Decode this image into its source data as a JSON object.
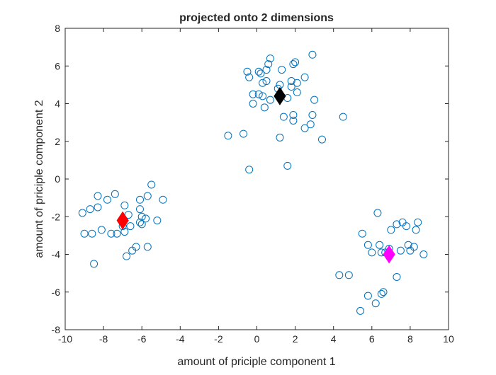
{
  "chart_data": {
    "type": "scatter",
    "title": "projected onto 2 dimensions",
    "xlabel": "amount of priciple component 1",
    "ylabel": "amount of priciple component 2",
    "xlim": [
      -10,
      10
    ],
    "ylim": [
      -8,
      8
    ],
    "xticks": [
      -10,
      -8,
      -6,
      -4,
      -2,
      0,
      2,
      4,
      6,
      8,
      10
    ],
    "yticks": [
      -8,
      -6,
      -4,
      -2,
      0,
      2,
      4,
      6,
      8
    ],
    "grid": false,
    "point_color": "#0072BD",
    "points": [
      [
        -9.1,
        -1.8
      ],
      [
        -9.0,
        -2.9
      ],
      [
        -8.7,
        -1.6
      ],
      [
        -8.6,
        -2.9
      ],
      [
        -8.5,
        -4.5
      ],
      [
        -8.3,
        -0.9
      ],
      [
        -8.3,
        -1.5
      ],
      [
        -8.1,
        -2.7
      ],
      [
        -7.8,
        -1.1
      ],
      [
        -7.6,
        -2.9
      ],
      [
        -7.4,
        -0.8
      ],
      [
        -7.3,
        -2.9
      ],
      [
        -7.0,
        -2.1
      ],
      [
        -7.0,
        -2.5
      ],
      [
        -6.9,
        -1.4
      ],
      [
        -6.9,
        -2.8
      ],
      [
        -6.8,
        -4.1
      ],
      [
        -6.7,
        -1.9
      ],
      [
        -6.6,
        -2.5
      ],
      [
        -6.5,
        -3.8
      ],
      [
        -6.3,
        -3.6
      ],
      [
        -6.1,
        -1.1
      ],
      [
        -6.1,
        -1.6
      ],
      [
        -6.1,
        -2.3
      ],
      [
        -6.0,
        -2.4
      ],
      [
        -6.0,
        -2.0
      ],
      [
        -5.8,
        -2.1
      ],
      [
        -5.7,
        -3.6
      ],
      [
        -5.7,
        -0.9
      ],
      [
        -5.5,
        -0.3
      ],
      [
        -5.2,
        -2.2
      ],
      [
        -4.9,
        -1.1
      ],
      [
        -1.5,
        2.3
      ],
      [
        -0.7,
        2.4
      ],
      [
        -0.5,
        5.7
      ],
      [
        -0.4,
        5.4
      ],
      [
        -0.4,
        0.5
      ],
      [
        -0.2,
        4.0
      ],
      [
        -0.2,
        4.5
      ],
      [
        0.1,
        5.7
      ],
      [
        0.1,
        4.5
      ],
      [
        0.2,
        5.6
      ],
      [
        0.3,
        4.4
      ],
      [
        0.3,
        5.1
      ],
      [
        0.4,
        3.8
      ],
      [
        0.5,
        5.2
      ],
      [
        0.5,
        5.8
      ],
      [
        0.6,
        6.1
      ],
      [
        0.7,
        6.4
      ],
      [
        0.7,
        4.2
      ],
      [
        1.1,
        4.8
      ],
      [
        1.2,
        5.0
      ],
      [
        1.2,
        2.2
      ],
      [
        1.3,
        5.8
      ],
      [
        1.4,
        3.3
      ],
      [
        1.6,
        4.3
      ],
      [
        1.6,
        0.7
      ],
      [
        1.8,
        4.9
      ],
      [
        1.8,
        5.2
      ],
      [
        1.9,
        3.4
      ],
      [
        1.9,
        3.1
      ],
      [
        1.9,
        6.1
      ],
      [
        2.0,
        6.2
      ],
      [
        2.1,
        4.6
      ],
      [
        2.1,
        5.1
      ],
      [
        2.5,
        5.4
      ],
      [
        2.5,
        2.7
      ],
      [
        2.8,
        2.9
      ],
      [
        2.9,
        3.4
      ],
      [
        2.9,
        6.6
      ],
      [
        3.0,
        4.2
      ],
      [
        3.4,
        2.1
      ],
      [
        4.5,
        3.3
      ],
      [
        4.3,
        -5.1
      ],
      [
        4.8,
        -5.1
      ],
      [
        5.4,
        -7.0
      ],
      [
        5.5,
        -2.9
      ],
      [
        5.8,
        -3.5
      ],
      [
        5.8,
        -6.2
      ],
      [
        6.0,
        -3.9
      ],
      [
        6.2,
        -6.6
      ],
      [
        6.3,
        -1.8
      ],
      [
        6.4,
        -3.5
      ],
      [
        6.5,
        -6.1
      ],
      [
        6.5,
        -3.9
      ],
      [
        6.6,
        -6.0
      ],
      [
        6.7,
        -3.9
      ],
      [
        6.9,
        -3.7
      ],
      [
        7.0,
        -2.7
      ],
      [
        7.3,
        -5.2
      ],
      [
        7.3,
        -2.4
      ],
      [
        7.5,
        -3.8
      ],
      [
        7.6,
        -2.3
      ],
      [
        7.8,
        -2.5
      ],
      [
        7.9,
        -3.5
      ],
      [
        8.0,
        -3.8
      ],
      [
        8.2,
        -3.6
      ],
      [
        8.3,
        -2.7
      ],
      [
        8.4,
        -2.3
      ],
      [
        8.7,
        -4.0
      ]
    ],
    "centroids": [
      {
        "x": -7.0,
        "y": -2.2,
        "color": "#FF0000"
      },
      {
        "x": 1.2,
        "y": 4.4,
        "color": "#000000"
      },
      {
        "x": 6.9,
        "y": -4.0,
        "color": "#FF00FF"
      }
    ]
  }
}
